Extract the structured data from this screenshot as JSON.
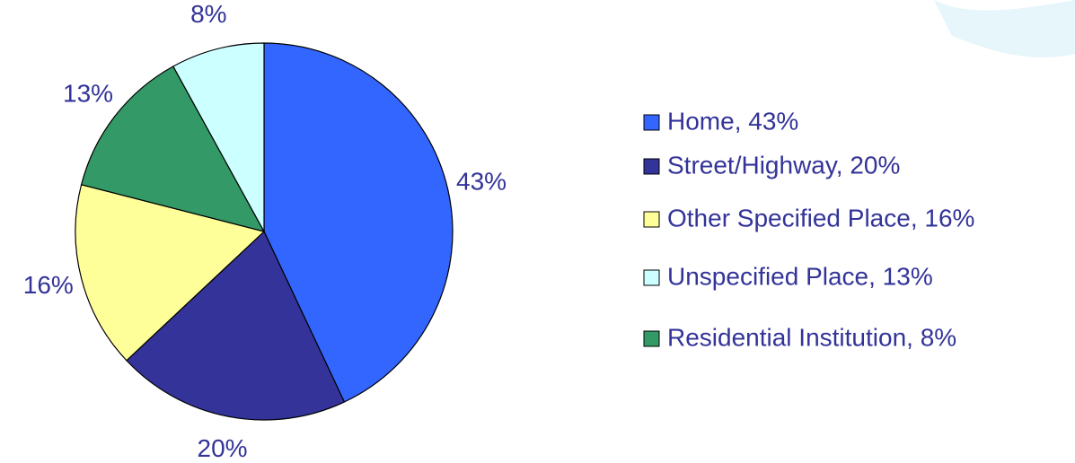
{
  "chart_data": {
    "type": "pie",
    "values": [
      43,
      20,
      16,
      13,
      8
    ],
    "value_labels": [
      "43%",
      "20%",
      "16%",
      "13%",
      "8%"
    ],
    "colors": [
      "#3366ff",
      "#333399",
      "#ffff99",
      "#339966",
      "#ccffff"
    ],
    "legend": [
      {
        "label": "Home, 43%",
        "color": "#3366ff"
      },
      {
        "label": "Street/Highway, 20%",
        "color": "#333399"
      },
      {
        "label": "Other Specified Place, 16%",
        "color": "#ffff99"
      },
      {
        "label": "Unspecified Place, 13%",
        "color": "#ccffff"
      },
      {
        "label": "Residential Institution, 8%",
        "color": "#339966"
      }
    ]
  }
}
